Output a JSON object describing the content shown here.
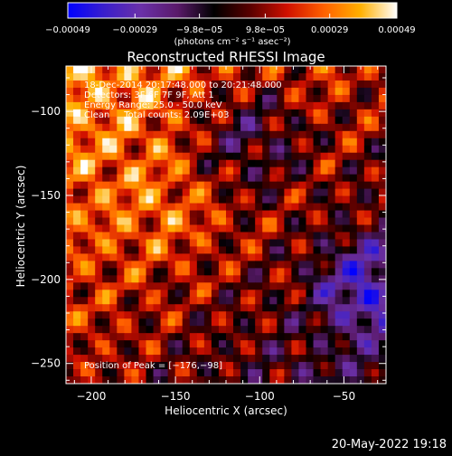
{
  "chart_data": {
    "type": "heatmap",
    "title": "Reconstructed RHESSI Image",
    "xlabel": "Heliocentric X (arcsec)",
    "ylabel": "Heliocentric Y (arcsec)",
    "xlim": [
      -215,
      -25
    ],
    "ylim": [
      -262,
      -73
    ],
    "x_ticks": [
      -200,
      -150,
      -100,
      -50
    ],
    "y_ticks": [
      -250,
      -200,
      -150,
      -100
    ],
    "x_tick_labels": [
      "−200",
      "−150",
      "−100",
      "−50"
    ],
    "y_tick_labels": [
      "−250",
      "−200",
      "−150",
      "−100"
    ],
    "colorbar": {
      "min": -0.00049,
      "max": 0.00049,
      "ticks": [
        -0.00049,
        -0.00029,
        -9.8e-05,
        9.8e-05,
        0.00029,
        0.00049
      ],
      "tick_labels": [
        "−0.00049",
        "−0.00029",
        "−9.8e−05",
        "9.8e−05",
        "0.00029",
        "0.00049"
      ],
      "unit_label": "(photons cm⁻² s⁻¹ asec⁻²)",
      "colors": [
        "#0000ff",
        "#3a1fcc",
        "#6a30a8",
        "#5a1a6a",
        "#000000",
        "#5a0000",
        "#d01000",
        "#ff6000",
        "#ffb000",
        "#ffffff"
      ]
    },
    "grid_cols": 44,
    "grid_rows": 44,
    "annotations": [
      "18-Dec-2014 20:17:48.000 to 20:21:48.000",
      "Detectors: 3F 6F 7F 9F, Att 1",
      "Energy Range: 25.0 - 50.0 keV",
      "Clean     Total counts: 2.09E+03"
    ],
    "peak_label": "Position of Peak = [−176,−98]",
    "peak": [
      -176,
      -98
    ],
    "grid": false
  },
  "footer": {
    "date": "20-May-2022 19:18"
  }
}
